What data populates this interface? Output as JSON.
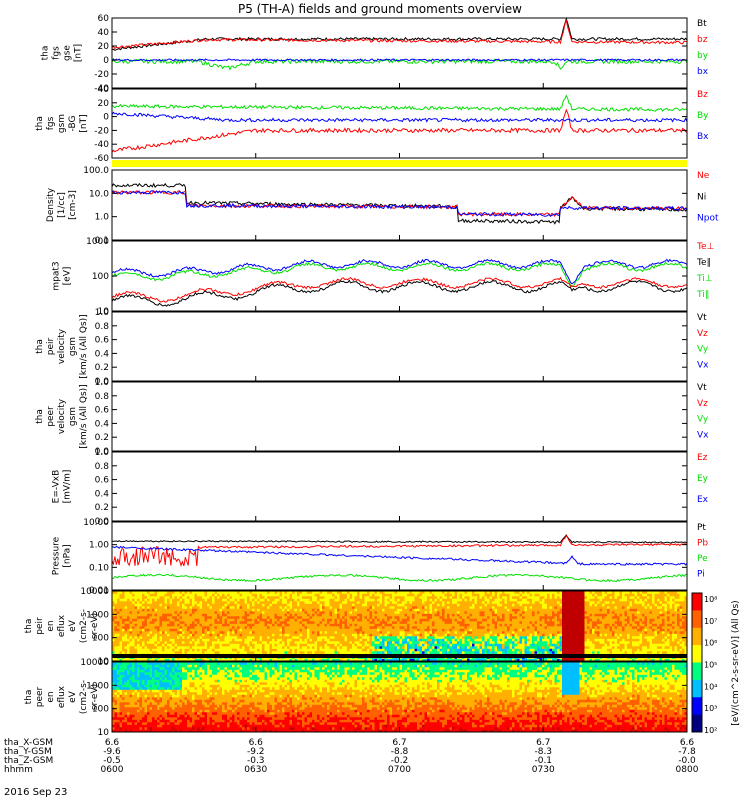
{
  "title": "P5 (TH-A) fields and ground moments overview",
  "date_label": "2016 Sep 23",
  "colors": {
    "black": "#000000",
    "red": "#ff0000",
    "green": "#00e000",
    "blue": "#0000ff",
    "yellow": "#ffff00"
  },
  "chart_data": [
    {
      "id": "p1",
      "type": "line",
      "ylabel": [
        "tha",
        "fgs",
        "gse",
        "[nT]"
      ],
      "yticks": [
        "60",
        "40",
        "20",
        "0",
        "-20",
        "-40"
      ],
      "ylim": [
        -40,
        60
      ],
      "legend": [
        {
          "text": "Bt",
          "color": "black"
        },
        {
          "text": "bz",
          "color": "red"
        },
        {
          "text": "by",
          "color": "green"
        },
        {
          "text": "bx",
          "color": "blue"
        }
      ]
    },
    {
      "id": "p2",
      "type": "line",
      "ylabel": [
        "tha",
        "fgs",
        "gsm",
        "-BG",
        "[nT]"
      ],
      "yticks": [
        "40",
        "20",
        "0",
        "-20",
        "-40",
        "-60"
      ],
      "ylim": [
        -60,
        40
      ],
      "legend": [
        {
          "text": "Bz",
          "color": "red"
        },
        {
          "text": "By",
          "color": "green"
        },
        {
          "text": "Bx",
          "color": "blue"
        }
      ]
    },
    {
      "id": "p3",
      "type": "line",
      "ylabel": [
        "Density",
        "[1/cc]",
        "[cm-3]"
      ],
      "scale": "log",
      "yticks": [
        "100.0",
        "10.0",
        "1.0",
        "0.1"
      ],
      "ylim": [
        0.1,
        100
      ],
      "legend": [
        {
          "text": "Ne",
          "color": "red"
        },
        {
          "text": "Ni",
          "color": "black"
        },
        {
          "text": "Npot",
          "color": "blue"
        }
      ]
    },
    {
      "id": "p4",
      "type": "line",
      "ylabel": [
        "mpat3",
        "[eV]"
      ],
      "scale": "log",
      "yticks": [
        "1000",
        "100",
        "10"
      ],
      "ylim": [
        10,
        5000
      ],
      "legend": [
        {
          "text": "Te⊥",
          "color": "red"
        },
        {
          "text": "Te∥",
          "color": "black"
        },
        {
          "text": "Ti⊥",
          "color": "green"
        },
        {
          "text": "Ti∥",
          "color": "green"
        }
      ]
    },
    {
      "id": "p5",
      "type": "line",
      "ylabel": [
        "tha",
        "peir",
        "velocity",
        "gsm",
        "[km/s (All Qs)]"
      ],
      "yticks": [
        "1.0",
        "0.8",
        "0.6",
        "0.4",
        "0.2",
        "0.0"
      ],
      "ylim": [
        0,
        1
      ],
      "legend": [
        {
          "text": "Vt",
          "color": "black"
        },
        {
          "text": "Vz",
          "color": "red"
        },
        {
          "text": "Vy",
          "color": "green"
        },
        {
          "text": "Vx",
          "color": "blue"
        }
      ]
    },
    {
      "id": "p6",
      "type": "line",
      "ylabel": [
        "tha",
        "peer",
        "velocity",
        "gsm",
        "[km/s (All Qs)]"
      ],
      "yticks": [
        "1.0",
        "0.8",
        "0.6",
        "0.4",
        "0.2",
        "0.0"
      ],
      "ylim": [
        0,
        1
      ],
      "legend": [
        {
          "text": "Vt",
          "color": "black"
        },
        {
          "text": "Vz",
          "color": "red"
        },
        {
          "text": "Vy",
          "color": "green"
        },
        {
          "text": "Vx",
          "color": "blue"
        }
      ]
    },
    {
      "id": "p7",
      "type": "line",
      "ylabel": [
        "E=-VxB",
        "[mV/m]"
      ],
      "yticks": [
        "1.0",
        "0.8",
        "0.6",
        "0.4",
        "0.2",
        "0.0"
      ],
      "ylim": [
        0,
        1
      ],
      "legend": [
        {
          "text": "Ez",
          "color": "red"
        },
        {
          "text": "Ey",
          "color": "green"
        },
        {
          "text": "Ex",
          "color": "blue"
        }
      ]
    },
    {
      "id": "p8",
      "type": "line",
      "ylabel": [
        "Pressure",
        "[nPa]"
      ],
      "scale": "log",
      "yticks": [
        "10.00",
        "1.00",
        "0.10",
        "0.01"
      ],
      "ylim": [
        0.01,
        10
      ],
      "legend": [
        {
          "text": "Pt",
          "color": "black"
        },
        {
          "text": "Pb",
          "color": "red"
        },
        {
          "text": "Pe",
          "color": "green"
        },
        {
          "text": "Pi",
          "color": "blue"
        }
      ]
    },
    {
      "id": "p9",
      "type": "heatmap",
      "ylabel": [
        "tha",
        "peir",
        "en",
        "eflux",
        "eV",
        "(cm2-s-",
        "sr-eV)"
      ],
      "scale": "log",
      "yticks": [
        "10000",
        "1000",
        "100",
        "10"
      ],
      "ylim": [
        5,
        30000
      ]
    },
    {
      "id": "p10",
      "type": "heatmap",
      "ylabel": [
        "tha",
        "peer",
        "en",
        "eflux",
        "eV",
        "(cm2-s-",
        "sr-eV)"
      ],
      "scale": "log",
      "yticks": [
        "10000",
        "1000",
        "100",
        "10"
      ],
      "ylim": [
        5,
        30000
      ]
    }
  ],
  "colorbar": {
    "ticks": [
      "10⁸",
      "10⁷",
      "10⁶",
      "10⁵",
      "10⁴",
      "10³",
      "10²"
    ],
    "label": "[eV/(cm^2-s-sr-eV)] (All Qs)"
  },
  "x_axis": {
    "row_labels": [
      "tha_X-GSM",
      "tha_Y-GSM",
      "tha_Z-GSM",
      "hhmm"
    ],
    "columns": [
      {
        "x": "6.6",
        "y": "-9.6",
        "z": "-0.5",
        "t": "0600"
      },
      {
        "x": "6.6",
        "y": "-9.2",
        "z": "-0.3",
        "t": "0630"
      },
      {
        "x": "6.7",
        "y": "-8.8",
        "z": "-0.2",
        "t": "0700"
      },
      {
        "x": "6.7",
        "y": "-8.3",
        "z": "-0.1",
        "t": "0730"
      },
      {
        "x": "6.6",
        "y": "-7.8",
        "z": "-0.0",
        "t": "0800"
      }
    ]
  }
}
